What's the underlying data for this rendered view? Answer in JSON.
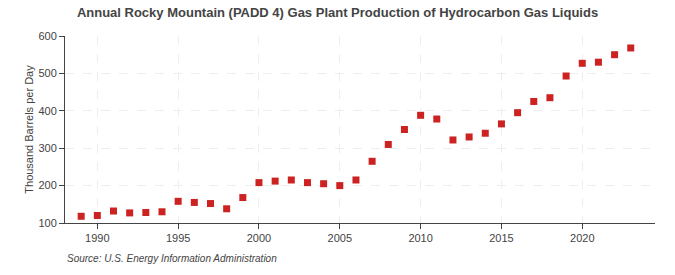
{
  "chart_data": {
    "type": "scatter",
    "title": "Annual Rocky Mountain (PADD 4) Gas Plant Production of Hydrocarbon Gas Liquids",
    "y_label": "Thousand Barrels per Day",
    "annotations": [
      "Source: U.S. Energy Information Administration"
    ],
    "x": [
      1989,
      1990,
      1991,
      1992,
      1993,
      1994,
      1995,
      1996,
      1997,
      1998,
      1999,
      2000,
      2001,
      2002,
      2003,
      2004,
      2005,
      2006,
      2007,
      2008,
      2009,
      2010,
      2011,
      2012,
      2013,
      2014,
      2015,
      2016,
      2017,
      2018,
      2019,
      2020,
      2021,
      2022,
      2023
    ],
    "values": [
      118,
      120,
      132,
      127,
      128,
      130,
      158,
      155,
      152,
      138,
      168,
      208,
      212,
      215,
      208,
      205,
      200,
      215,
      265,
      310,
      350,
      388,
      378,
      322,
      330,
      340,
      365,
      395,
      425,
      435,
      493,
      527,
      530,
      550,
      568
    ],
    "color": "#cc2222",
    "marker": "square",
    "xlim": [
      1988.0,
      2024.5
    ],
    "xticks": [
      1990,
      1995,
      2000,
      2005,
      2010,
      2015,
      2020
    ],
    "ylim": [
      100,
      600
    ],
    "yticks": [
      100,
      200,
      300,
      400,
      500,
      600
    ],
    "grid": true
  }
}
